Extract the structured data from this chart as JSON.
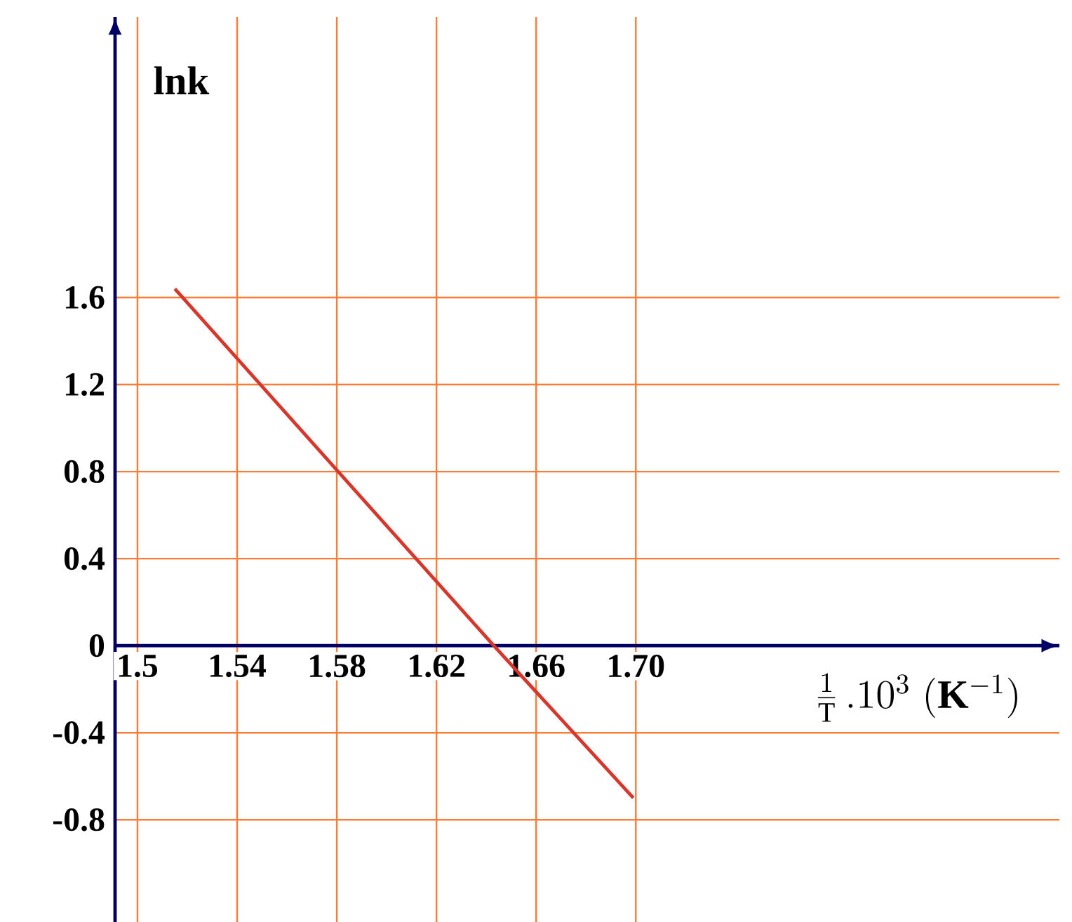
{
  "chart_data": {
    "type": "line",
    "xlabel": "\\frac{1}{\\mathrm{T}}\\,.10^{3}\\;(\\mathbf{K}^{-1})",
    "ylabel": "lnk",
    "x": [
      1.515,
      1.643,
      1.699
    ],
    "series": [
      {
        "color": "#d8362a",
        "values": [
          1.64,
          0,
          -0.7
        ]
      }
    ],
    "xlim": [
      1.491,
      1.87
    ],
    "ylim": [
      -1.27,
      2.89
    ],
    "xticks": [
      1.5,
      1.54,
      1.58,
      1.62,
      1.66,
      {
        "value": 1.7,
        "label": "1.70"
      }
    ],
    "yticks": [
      -0.8,
      -0.4,
      0,
      0.4,
      0.8,
      1.2,
      1.6
    ],
    "grid": true,
    "marker": "none",
    "line_style": "solid"
  }
}
